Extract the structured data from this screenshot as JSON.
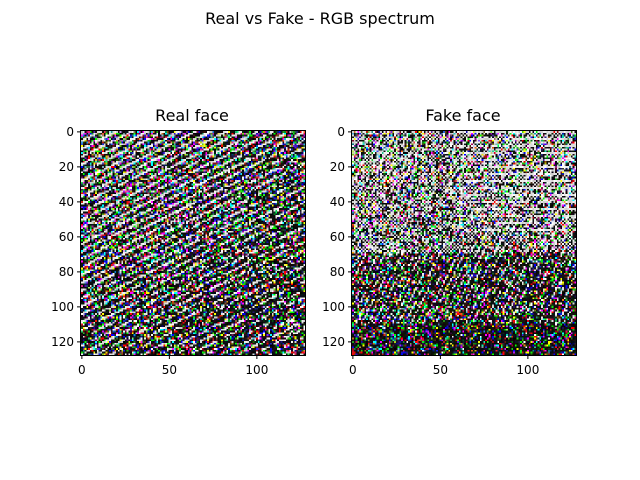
{
  "figure": {
    "suptitle": "Real vs Fake - RGB spectrum"
  },
  "chart_data": [
    {
      "type": "heatmap",
      "title": "Real face",
      "xlabel": "",
      "ylabel": "",
      "xlim": [
        0,
        128
      ],
      "ylim": [
        128,
        0
      ],
      "xticks": [
        0,
        50,
        100
      ],
      "yticks": [
        0,
        20,
        40,
        60,
        80,
        100,
        120
      ],
      "image_size": [
        128,
        128
      ],
      "channels": "RGB",
      "pattern": "dense multicolor noise; high-contrast diagonal white/black streaks concentrated in the upper-left region (rows 0-80), darker lower-right"
    },
    {
      "type": "heatmap",
      "title": "Fake face",
      "xlabel": "",
      "ylabel": "",
      "xlim": [
        0,
        128
      ],
      "ylim": [
        128,
        0
      ],
      "xticks": [
        0,
        50,
        100
      ],
      "yticks": [
        0,
        20,
        40,
        60,
        80,
        100,
        120
      ],
      "image_size": [
        128,
        128
      ],
      "channels": "RGB",
      "pattern": "checkerboard and diagonal white/black hatching across upper half, horizontal striping near top-right, darker lower-right quadrant"
    }
  ]
}
